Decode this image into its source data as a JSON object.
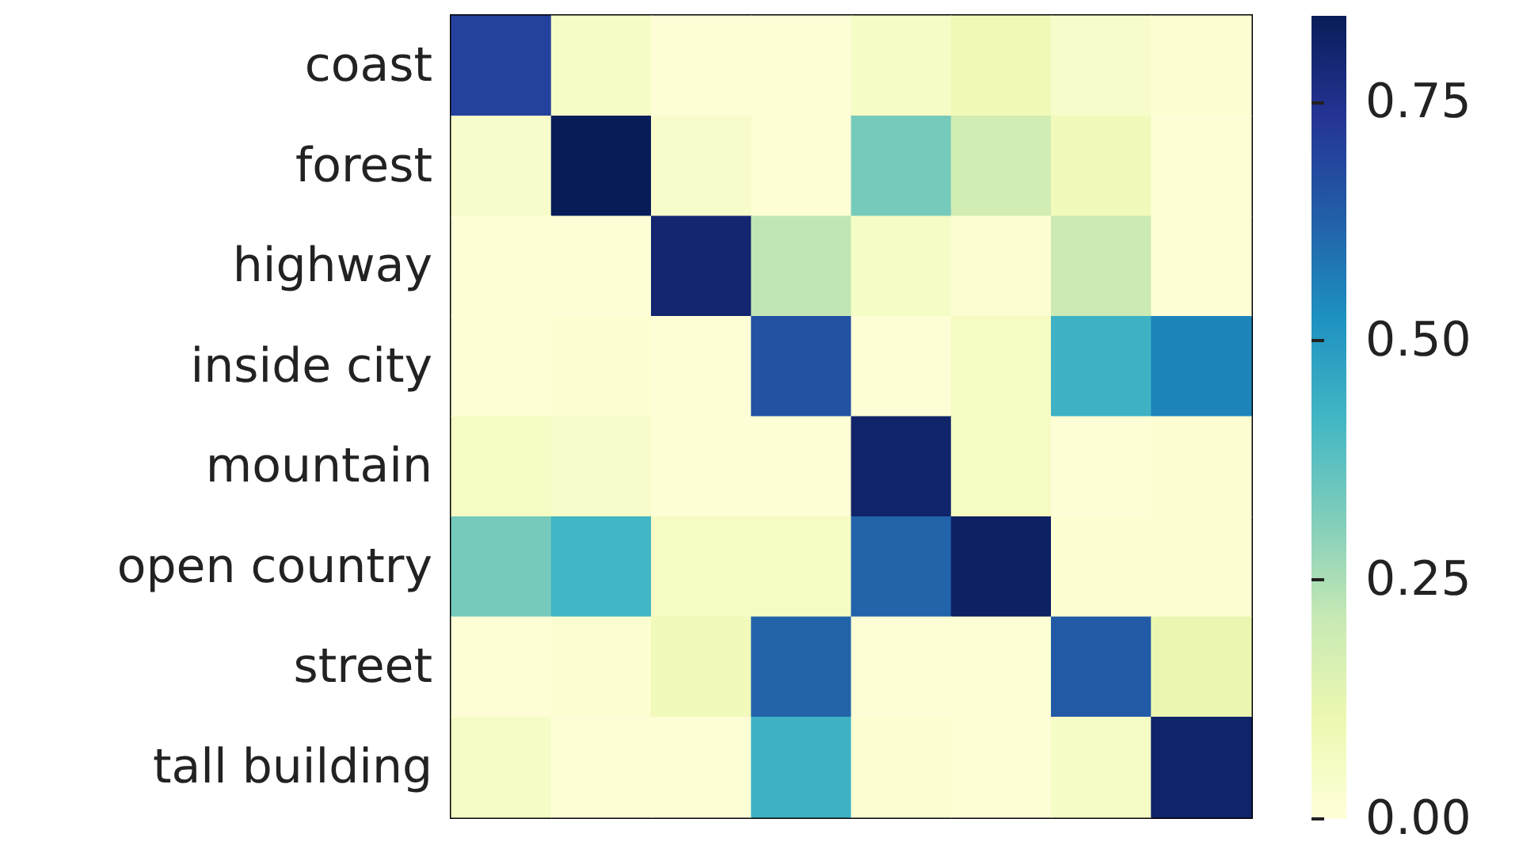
{
  "chart_data": {
    "type": "heatmap",
    "categories": [
      null,
      null,
      null,
      null,
      null,
      null,
      null,
      null
    ],
    "y_categories": [
      "coast",
      "forest",
      "highway",
      "inside city",
      "mountain",
      "open country",
      "street",
      "tall building"
    ],
    "cells": [
      [
        0.7,
        0.05,
        0.01,
        0.01,
        0.05,
        0.09,
        0.04,
        0.02
      ],
      [
        0.04,
        0.84,
        0.04,
        0.01,
        0.33,
        0.18,
        0.08,
        0.01
      ],
      [
        0.01,
        0.01,
        0.8,
        0.22,
        0.05,
        0.02,
        0.2,
        0.01
      ],
      [
        0.01,
        0.02,
        0.01,
        0.66,
        0.01,
        0.06,
        0.43,
        0.55
      ],
      [
        0.06,
        0.04,
        0.01,
        0.01,
        0.81,
        0.06,
        0.01,
        0.02
      ],
      [
        0.33,
        0.42,
        0.06,
        0.06,
        0.62,
        0.82,
        0.02,
        0.02
      ],
      [
        0.01,
        0.02,
        0.08,
        0.62,
        0.01,
        0.01,
        0.64,
        0.11
      ],
      [
        0.05,
        0.01,
        0.01,
        0.43,
        0.02,
        0.01,
        0.05,
        0.81
      ]
    ],
    "clim": [
      0,
      0.84
    ],
    "cticks": [
      {
        "value": 0,
        "label": "0.00"
      },
      {
        "value": 0.25,
        "label": "0.25"
      },
      {
        "value": 0.5,
        "label": "0.50"
      },
      {
        "value": 0.75,
        "label": "0.75"
      }
    ],
    "tick_labels": "y"
  }
}
